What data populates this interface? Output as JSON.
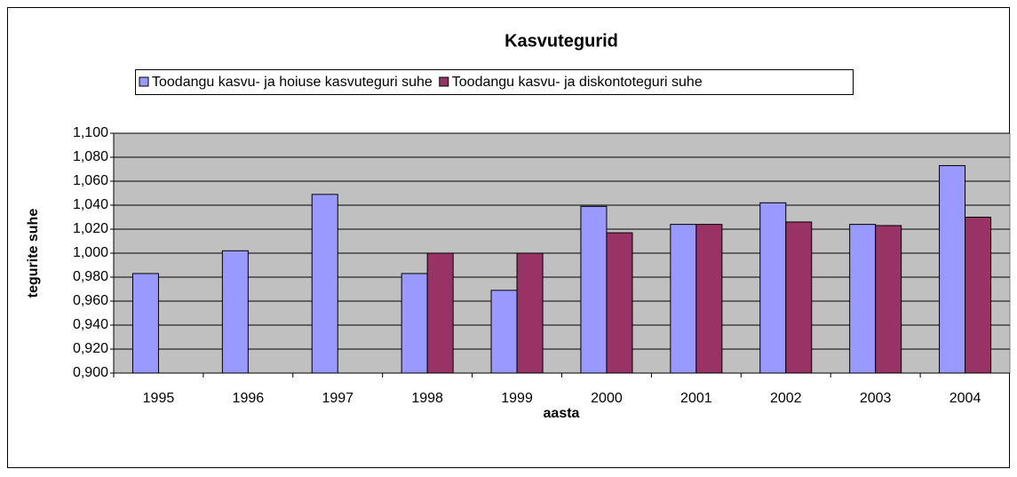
{
  "chart_data": {
    "type": "bar",
    "title": "Kasvutegurid",
    "x_label": "aasta",
    "y_label": "tegurite suhe",
    "categories": [
      "1995",
      "1996",
      "1997",
      "1998",
      "1999",
      "2000",
      "2001",
      "2002",
      "2003",
      "2004"
    ],
    "series": [
      {
        "name": "Toodangu kasvu- ja hoiuse kasvuteguri suhe",
        "color": "#9999ff",
        "values": [
          0.983,
          1.002,
          1.049,
          0.983,
          0.969,
          1.039,
          1.024,
          1.042,
          1.024,
          1.073
        ]
      },
      {
        "name": "Toodangu kasvu- ja diskontoteguri suhe",
        "color": "#993366",
        "values": [
          null,
          null,
          null,
          1.0,
          1.0,
          1.017,
          1.024,
          1.026,
          1.023,
          1.03
        ]
      }
    ],
    "ylim": [
      0.9,
      1.1
    ],
    "yticks": [
      {
        "value": 0.9,
        "label": "0,900"
      },
      {
        "value": 0.92,
        "label": "0,920"
      },
      {
        "value": 0.94,
        "label": "0,940"
      },
      {
        "value": 0.96,
        "label": "0,960"
      },
      {
        "value": 0.98,
        "label": "0,980"
      },
      {
        "value": 1.0,
        "label": "1,000"
      },
      {
        "value": 1.02,
        "label": "1,020"
      },
      {
        "value": 1.04,
        "label": "1,040"
      },
      {
        "value": 1.06,
        "label": "1,060"
      },
      {
        "value": 1.08,
        "label": "1,080"
      },
      {
        "value": 1.1,
        "label": "1,100"
      }
    ],
    "grid": true,
    "plot_background": "#c0c0c0",
    "legend": "top"
  }
}
